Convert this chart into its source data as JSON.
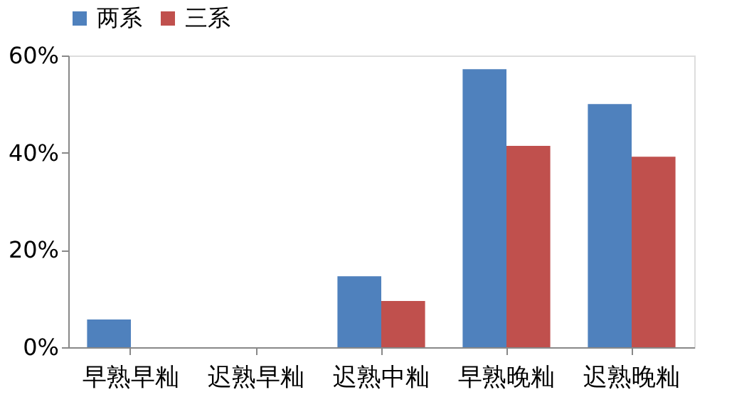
{
  "chart_data": {
    "type": "bar",
    "categories": [
      "早熟早籼",
      "迟熟早籼",
      "迟熟中籼",
      "早熟晚籼",
      "迟熟晚籼"
    ],
    "series": [
      {
        "name": "两系",
        "color": "#4f81bd",
        "values": [
          5.7,
          0,
          14.6,
          57.2,
          50.0
        ]
      },
      {
        "name": "三系",
        "color": "#c0504d",
        "values": [
          0,
          0,
          9.5,
          41.4,
          39.2
        ]
      }
    ],
    "ylim": [
      0,
      60
    ],
    "yticks": [
      {
        "value": 0,
        "label": "0%"
      },
      {
        "value": 20,
        "label": "20%"
      },
      {
        "value": 40,
        "label": "40%"
      },
      {
        "value": 60,
        "label": "60%"
      }
    ],
    "grid": false,
    "legend": "top"
  }
}
